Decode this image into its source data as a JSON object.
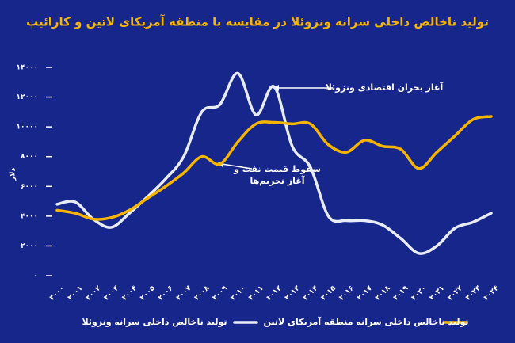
{
  "chart_data": {
    "type": "line",
    "title": "تولید ناخالص داخلی سرانه ونزوئلا در مقایسه با منطقه آمریکای لاتین و کارائیب",
    "y_label": "دلار",
    "categories": [
      "۲۰۰۰",
      "۲۰۰۱",
      "۲۰۰۲",
      "۲۰۰۳",
      "۲۰۰۴",
      "۲۰۰۵",
      "۲۰۰۶",
      "۲۰۰۷",
      "۲۰۰۸",
      "۲۰۰۹",
      "۲۰۱۰",
      "۲۰۱۱",
      "۲۰۱۲",
      "۲۰۱۳",
      "۲۰۱۴",
      "۲۰۱۵",
      "۲۰۱۶",
      "۲۰۱۷",
      "۲۰۱۸",
      "۲۰۱۹",
      "۲۰۲۰",
      "۲۰۲۱",
      "۲۰۲۲",
      "۲۰۲۳",
      "۲۰۲۴"
    ],
    "series": [
      {
        "name": "تولید ناخالص داخلی سرانه ونزوئلا",
        "color": "#e8ecf7",
        "values": [
          4800,
          4950,
          3800,
          3250,
          4200,
          5300,
          6500,
          8000,
          11000,
          11500,
          13600,
          10800,
          12700,
          8700,
          7300,
          4000,
          3700,
          3700,
          3400,
          2500,
          1500,
          2000,
          3200,
          3600,
          4200
        ]
      },
      {
        "name": "تولید ناخالص داخلی سرانه منطقه آمریکای لاتین",
        "color": "#f7b500",
        "values": [
          4400,
          4200,
          3800,
          3900,
          4400,
          5200,
          6000,
          6900,
          8000,
          7500,
          9000,
          10200,
          10300,
          10200,
          10200,
          8800,
          8300,
          9100,
          8700,
          8500,
          7200,
          8300,
          9400,
          10500,
          10700
        ]
      }
    ],
    "ylim": [
      0,
      14000
    ],
    "yticks": [
      {
        "value": 0,
        "label": "۰"
      },
      {
        "value": 2000,
        "label": "۲۰۰۰"
      },
      {
        "value": 4000,
        "label": "۴۰۰۰"
      },
      {
        "value": 6000,
        "label": "۶۰۰۰"
      },
      {
        "value": 8000,
        "label": "۸۰۰۰"
      },
      {
        "value": 10000,
        "label": "۱۰۰۰۰"
      },
      {
        "value": 12000,
        "label": "۱۲۰۰۰"
      },
      {
        "value": 14000,
        "label": "۱۴۰۰۰"
      }
    ],
    "annotations": [
      "آغاز بحران اقتصادی ونزوئلا",
      "سقوط قیمت نفت و",
      "آغاز تحریم‌ها"
    ]
  }
}
